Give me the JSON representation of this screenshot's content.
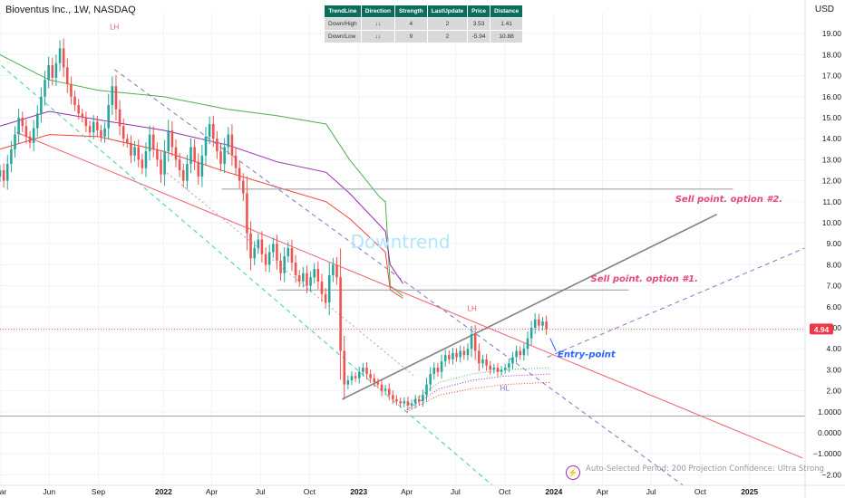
{
  "header": {
    "title": "Bioventus Inc., 1W, NASDAQ",
    "currency": "USD"
  },
  "trend_table": {
    "columns": [
      "TrendLine",
      "Direction",
      "Strength",
      "LastUpdate",
      "Price",
      "Distance"
    ],
    "rows": [
      [
        "Down/High",
        "↓↓",
        "4",
        "2",
        "3.53",
        "1.41"
      ],
      [
        "Down/Low",
        "↓↓",
        "9",
        "2",
        "-5.94",
        "10.88"
      ]
    ]
  },
  "footer": {
    "text": "Auto-Selected Period: 200   Projection Confidence: Ultra Strong"
  },
  "colors": {
    "up": "#26a69a",
    "down": "#ef5350",
    "upper_band": "#4caf50",
    "mid_band": "#9c27b0",
    "lower_band": "#f44336",
    "resistance_line": "#f06070",
    "support_dashed": "#5dd6a9",
    "channel_dashed": "#7a7ac8",
    "gray_line": "#808080",
    "sell_text": "#e8477a",
    "entry_text": "#2962ff",
    "watermark": "#b3e5fc",
    "price_tag": "#f23645"
  },
  "chart_data": {
    "type": "candlestick",
    "title": "Bioventus Inc., 1W, NASDAQ",
    "currency": "USD",
    "last_price": "4.94",
    "y_ticks": [
      "19.00",
      "18.00",
      "17.00",
      "16.00",
      "15.00",
      "14.00",
      "13.00",
      "12.00",
      "11.00",
      "10.00",
      "9.00",
      "8.00",
      "7.00",
      "6.00",
      "5.00",
      "4.00",
      "3.00",
      "2.00",
      "1.0000",
      "0.0000",
      "−1.0000",
      "−2.00"
    ],
    "y_range": [
      -2.5,
      20
    ],
    "x_ticks": [
      "Mar",
      "Jun",
      "Sep",
      "2022",
      "Apr",
      "Jul",
      "Oct",
      "2023",
      "Apr",
      "Jul",
      "Oct",
      "2024",
      "Apr",
      "Jul",
      "Oct",
      "2025"
    ],
    "x_range": [
      "2021-03-01",
      "2025-04-15"
    ],
    "close_series": [
      [
        "2021-03-01",
        12.5
      ],
      [
        "2021-03-08",
        12.0
      ],
      [
        "2021-03-15",
        12.8
      ],
      [
        "2021-03-22",
        13.5
      ],
      [
        "2021-03-29",
        14.2
      ],
      [
        "2021-04-05",
        15.0
      ],
      [
        "2021-04-12",
        14.6
      ],
      [
        "2021-04-19",
        14.1
      ],
      [
        "2021-04-26",
        13.8
      ],
      [
        "2021-05-03",
        14.5
      ],
      [
        "2021-05-10",
        15.2
      ],
      [
        "2021-05-17",
        16.0
      ],
      [
        "2021-05-24",
        16.8
      ],
      [
        "2021-05-31",
        17.5
      ],
      [
        "2021-06-07",
        16.9
      ],
      [
        "2021-06-14",
        17.6
      ],
      [
        "2021-06-21",
        18.3
      ],
      [
        "2021-06-28",
        17.4
      ],
      [
        "2021-07-05",
        16.6
      ],
      [
        "2021-07-12",
        16.0
      ],
      [
        "2021-07-19",
        15.6
      ],
      [
        "2021-07-26",
        15.2
      ],
      [
        "2021-08-02",
        15.0
      ],
      [
        "2021-08-09",
        14.6
      ],
      [
        "2021-08-16",
        14.3
      ],
      [
        "2021-08-23",
        14.8
      ],
      [
        "2021-08-30",
        14.4
      ],
      [
        "2021-09-06",
        14.1
      ],
      [
        "2021-09-13",
        14.5
      ],
      [
        "2021-09-20",
        15.6
      ],
      [
        "2021-09-27",
        16.5
      ],
      [
        "2021-10-04",
        15.4
      ],
      [
        "2021-10-11",
        14.6
      ],
      [
        "2021-10-18",
        14.0
      ],
      [
        "2021-10-25",
        13.8
      ],
      [
        "2021-11-01",
        13.2
      ],
      [
        "2021-11-08",
        13.6
      ],
      [
        "2021-11-15",
        13.0
      ],
      [
        "2021-11-22",
        12.6
      ],
      [
        "2021-11-29",
        13.4
      ],
      [
        "2021-12-06",
        14.2
      ],
      [
        "2021-12-13",
        13.5
      ],
      [
        "2021-12-20",
        13.0
      ],
      [
        "2021-12-27",
        12.3
      ],
      [
        "2022-01-03",
        13.4
      ],
      [
        "2022-01-10",
        14.4
      ],
      [
        "2022-01-17",
        13.6
      ],
      [
        "2022-01-24",
        13.0
      ],
      [
        "2022-01-31",
        12.5
      ],
      [
        "2022-02-07",
        12.0
      ],
      [
        "2022-02-14",
        12.8
      ],
      [
        "2022-02-21",
        13.6
      ],
      [
        "2022-02-28",
        12.9
      ],
      [
        "2022-03-07",
        12.2
      ],
      [
        "2022-03-14",
        13.2
      ],
      [
        "2022-03-21",
        14.1
      ],
      [
        "2022-03-28",
        14.7
      ],
      [
        "2022-04-04",
        14.0
      ],
      [
        "2022-04-11",
        13.4
      ],
      [
        "2022-04-18",
        12.8
      ],
      [
        "2022-04-25",
        13.6
      ],
      [
        "2022-05-02",
        14.2
      ],
      [
        "2022-05-09",
        13.2
      ],
      [
        "2022-05-16",
        12.6
      ],
      [
        "2022-05-23",
        12.0
      ],
      [
        "2022-05-30",
        11.4
      ],
      [
        "2022-06-06",
        9.5
      ],
      [
        "2022-06-13",
        8.3
      ],
      [
        "2022-06-20",
        8.8
      ],
      [
        "2022-06-27",
        9.2
      ],
      [
        "2022-07-04",
        8.5
      ],
      [
        "2022-07-11",
        8.0
      ],
      [
        "2022-07-18",
        8.6
      ],
      [
        "2022-07-25",
        9.0
      ],
      [
        "2022-08-01",
        8.2
      ],
      [
        "2022-08-08",
        7.6
      ],
      [
        "2022-08-15",
        8.4
      ],
      [
        "2022-08-22",
        8.8
      ],
      [
        "2022-08-29",
        8.1
      ],
      [
        "2022-09-05",
        7.5
      ],
      [
        "2022-09-12",
        7.2
      ],
      [
        "2022-09-19",
        7.6
      ],
      [
        "2022-09-26",
        7.0
      ],
      [
        "2022-10-03",
        7.4
      ],
      [
        "2022-10-10",
        7.8
      ],
      [
        "2022-10-17",
        7.2
      ],
      [
        "2022-10-24",
        6.6
      ],
      [
        "2022-10-31",
        6.2
      ],
      [
        "2022-11-07",
        7.5
      ],
      [
        "2022-11-14",
        8.0
      ],
      [
        "2022-11-21",
        7.4
      ],
      [
        "2022-11-28",
        3.9
      ],
      [
        "2022-12-05",
        2.3
      ],
      [
        "2022-12-12",
        2.5
      ],
      [
        "2022-12-19",
        2.7
      ],
      [
        "2022-12-26",
        2.6
      ],
      [
        "2023-01-02",
        2.9
      ],
      [
        "2023-01-09",
        3.1
      ],
      [
        "2023-01-16",
        2.8
      ],
      [
        "2023-01-23",
        2.6
      ],
      [
        "2023-01-30",
        2.4
      ],
      [
        "2023-02-06",
        2.3
      ],
      [
        "2023-02-13",
        2.0
      ],
      [
        "2023-02-20",
        2.1
      ],
      [
        "2023-02-27",
        1.8
      ],
      [
        "2023-03-06",
        1.6
      ],
      [
        "2023-03-13",
        1.5
      ],
      [
        "2023-03-20",
        1.4
      ],
      [
        "2023-03-27",
        1.5
      ],
      [
        "2023-04-03",
        1.3
      ],
      [
        "2023-04-10",
        1.4
      ],
      [
        "2023-04-17",
        1.6
      ],
      [
        "2023-04-24",
        1.5
      ],
      [
        "2023-05-01",
        1.8
      ],
      [
        "2023-05-08",
        2.3
      ],
      [
        "2023-05-15",
        2.8
      ],
      [
        "2023-05-22",
        3.1
      ],
      [
        "2023-05-29",
        2.9
      ],
      [
        "2023-06-05",
        3.4
      ],
      [
        "2023-06-12",
        3.7
      ],
      [
        "2023-06-19",
        3.5
      ],
      [
        "2023-06-26",
        3.8
      ],
      [
        "2023-07-03",
        3.6
      ],
      [
        "2023-07-10",
        3.9
      ],
      [
        "2023-07-17",
        3.7
      ],
      [
        "2023-07-24",
        4.0
      ],
      [
        "2023-07-31",
        4.7
      ],
      [
        "2023-08-07",
        3.9
      ],
      [
        "2023-08-14",
        3.3
      ],
      [
        "2023-08-21",
        3.5
      ],
      [
        "2023-08-28",
        3.2
      ],
      [
        "2023-09-04",
        3.0
      ],
      [
        "2023-09-11",
        3.1
      ],
      [
        "2023-09-18",
        2.9
      ],
      [
        "2023-09-25",
        3.0
      ],
      [
        "2023-10-02",
        3.1
      ],
      [
        "2023-10-09",
        3.3
      ],
      [
        "2023-10-16",
        3.6
      ],
      [
        "2023-10-23",
        3.9
      ],
      [
        "2023-10-30",
        3.7
      ],
      [
        "2023-11-06",
        4.0
      ],
      [
        "2023-11-13",
        4.5
      ],
      [
        "2023-11-20",
        5.0
      ],
      [
        "2023-11-27",
        5.4
      ],
      [
        "2023-12-04",
        5.1
      ],
      [
        "2023-12-11",
        5.3
      ],
      [
        "2023-12-18",
        4.94
      ]
    ],
    "bands": {
      "upper": [
        [
          "2021-03-01",
          18.0
        ],
        [
          "2021-06-01",
          16.8
        ],
        [
          "2021-09-01",
          16.3
        ],
        [
          "2022-01-01",
          16.0
        ],
        [
          "2022-05-01",
          15.4
        ],
        [
          "2022-08-01",
          15.1
        ],
        [
          "2022-11-01",
          14.7
        ],
        [
          "2022-12-15",
          13.0
        ],
        [
          "2023-02-10",
          11.2
        ],
        [
          "2023-02-20",
          11.0
        ],
        [
          "2023-03-01",
          7.0
        ],
        [
          "2023-03-25",
          6.5
        ]
      ],
      "middle": [
        [
          "2021-03-01",
          14.6
        ],
        [
          "2021-06-01",
          15.3
        ],
        [
          "2021-09-01",
          14.9
        ],
        [
          "2022-01-01",
          14.4
        ],
        [
          "2022-05-01",
          13.7
        ],
        [
          "2022-08-01",
          12.9
        ],
        [
          "2022-11-01",
          12.4
        ],
        [
          "2022-12-15",
          11.4
        ],
        [
          "2023-02-20",
          9.6
        ],
        [
          "2023-03-01",
          8.0
        ],
        [
          "2023-03-25",
          7.1
        ]
      ],
      "lower": [
        [
          "2021-03-01",
          13.5
        ],
        [
          "2021-06-01",
          14.2
        ],
        [
          "2021-09-01",
          14.1
        ],
        [
          "2022-01-01",
          13.4
        ],
        [
          "2022-05-01",
          12.4
        ],
        [
          "2022-08-01",
          11.7
        ],
        [
          "2022-11-01",
          11.0
        ],
        [
          "2022-12-15",
          10.2
        ],
        [
          "2023-02-20",
          8.6
        ],
        [
          "2023-03-01",
          6.8
        ],
        [
          "2023-03-25",
          6.4
        ]
      ]
    },
    "dotted_bands": {
      "green": [
        [
          "2023-04-01",
          1.3
        ],
        [
          "2023-06-01",
          2.4
        ],
        [
          "2023-08-01",
          2.8
        ],
        [
          "2023-10-01",
          3.0
        ],
        [
          "2023-12-25",
          3.1
        ]
      ],
      "purple": [
        [
          "2023-04-01",
          1.1
        ],
        [
          "2023-06-01",
          2.1
        ],
        [
          "2023-08-01",
          2.5
        ],
        [
          "2023-10-01",
          2.7
        ],
        [
          "2023-12-25",
          2.8
        ]
      ],
      "red": [
        [
          "2023-04-01",
          1.0
        ],
        [
          "2023-06-01",
          1.8
        ],
        [
          "2023-08-01",
          2.1
        ],
        [
          "2023-10-01",
          2.3
        ],
        [
          "2023-12-25",
          2.4
        ]
      ]
    },
    "trendlines": {
      "resistance": [
        [
          "2021-04-01",
          14.3
        ],
        [
          "2025-04-10",
          -1.2
        ]
      ],
      "support_dashed": [
        [
          "2020-12-01",
          19.5
        ],
        [
          "2023-10-01",
          -3.0
        ]
      ],
      "channel_upper_dashed": [
        [
          "2021-10-01",
          17.3
        ],
        [
          "2024-09-15",
          -2.8
        ]
      ],
      "gray_uptrend": [
        [
          "2022-12-01",
          1.6
        ],
        [
          "2024-11-01",
          10.4
        ]
      ],
      "projection_dashed": [
        [
          "2023-12-20",
          3.6
        ],
        [
          "2025-04-15",
          8.8
        ]
      ],
      "purple_lower_dashed": [
        [
          "2022-01-01",
          12.5
        ],
        [
          "2023-04-15",
          2.7
        ]
      ],
      "h_levels": [
        {
          "value": 11.6,
          "from": "2022-04-20",
          "to": "2024-12-01"
        },
        {
          "value": 6.8,
          "from": "2022-08-01",
          "to": "2024-05-20"
        },
        {
          "value": 4.94,
          "from": "2021-03-01",
          "to": "2025-04-15"
        },
        {
          "value": 0.8,
          "from": "2021-03-01",
          "to": "2025-04-15"
        }
      ]
    },
    "annotations": [
      {
        "text": "LH",
        "date": "2021-10-01",
        "value": 19.2,
        "color": "#f06070"
      },
      {
        "text": "LH",
        "date": "2023-08-01",
        "value": 5.8,
        "color": "#f06070"
      },
      {
        "text": "HL",
        "date": "2023-10-01",
        "value": 2.0,
        "color": "#7a7ac8"
      },
      {
        "text": "Downtrend",
        "date": "2023-03-20",
        "value": 8.8,
        "color": "#b3e5fc"
      },
      {
        "text": "Sell point. option #2.",
        "date": "2024-08-15",
        "value": 11.0,
        "color": "#e8477a"
      },
      {
        "text": "Sell point. option #1.",
        "date": "2024-03-10",
        "value": 7.2,
        "color": "#e8477a"
      },
      {
        "text": "Entry-point",
        "date": "2024-01-08",
        "value": 3.6,
        "color": "#2962ff"
      }
    ],
    "grid": true
  }
}
